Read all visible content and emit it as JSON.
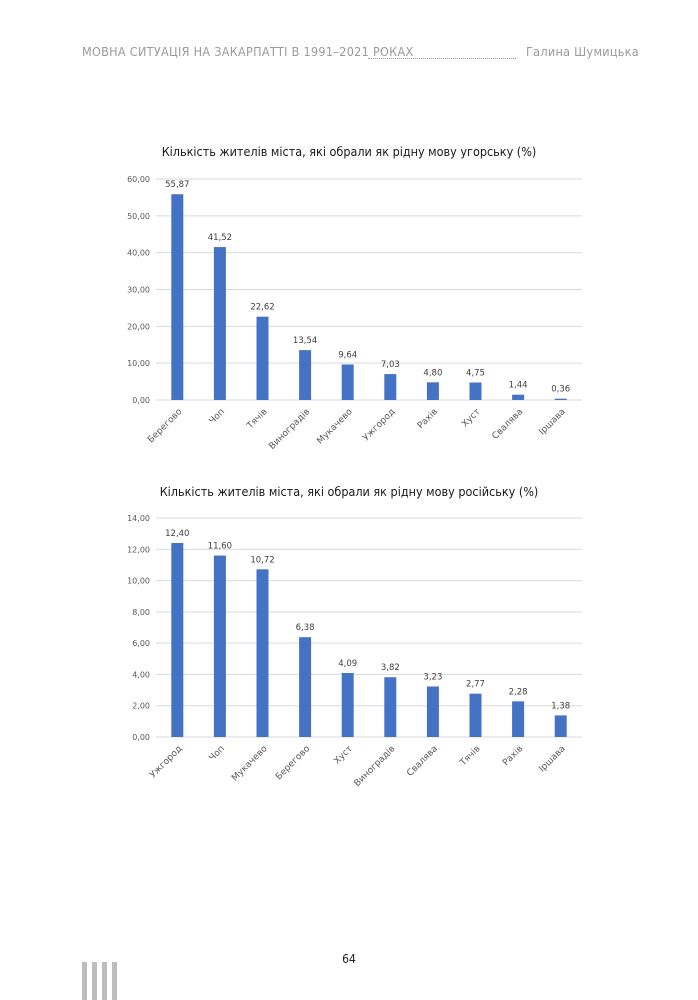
{
  "header": {
    "title": "МОВНА СИТУАЦІЯ НА ЗАКАРПАТТІ В 1991–2021 РОКАХ",
    "author": "Галина Шумицька"
  },
  "page_number": "64",
  "colors": {
    "bar": "#4472c4",
    "grid": "#d9d9d9",
    "axis_text": "#595959"
  },
  "chart_data": [
    {
      "type": "bar",
      "title": "Кількість жителів міста, які обрали як рідну мову угорську (%)",
      "categories": [
        "Берегово",
        "Чоп",
        "Тячів",
        "Виноградів",
        "Мукачево",
        "Ужгород",
        "Рахів",
        "Хуст",
        "Свалява",
        "Іршава"
      ],
      "values": [
        55.87,
        41.52,
        22.62,
        13.54,
        9.64,
        7.03,
        4.8,
        4.75,
        1.44,
        0.36
      ],
      "data_labels": [
        "55,87",
        "41,52",
        "22,62",
        "13,54",
        "9,64",
        "7,03",
        "4,80",
        "4,75",
        "1,44",
        "0,36"
      ],
      "yticks": [
        "0,00",
        "10,00",
        "20,00",
        "30,00",
        "40,00",
        "50,00",
        "60,00"
      ],
      "ylim": [
        0,
        60
      ],
      "grid": true,
      "legend": "none"
    },
    {
      "type": "bar",
      "title": "Кількість жителів міста, які обрали як рідну мову російську (%)",
      "categories": [
        "Ужгород",
        "Чоп",
        "Мукачево",
        "Берегово",
        "Хуст",
        "Виноградів",
        "Свалява",
        "Тячів",
        "Рахів",
        "Іршава"
      ],
      "values": [
        12.4,
        11.6,
        10.72,
        6.38,
        4.09,
        3.82,
        3.23,
        2.77,
        2.28,
        1.38
      ],
      "data_labels": [
        "12,40",
        "11,60",
        "10,72",
        "6,38",
        "4,09",
        "3,82",
        "3,23",
        "2,77",
        "2,28",
        "1,38"
      ],
      "yticks": [
        "0,00",
        "2,00",
        "4,00",
        "6,00",
        "8,00",
        "10,00",
        "12,00",
        "14,00"
      ],
      "ylim": [
        0,
        14
      ],
      "grid": true,
      "legend": "none"
    }
  ]
}
